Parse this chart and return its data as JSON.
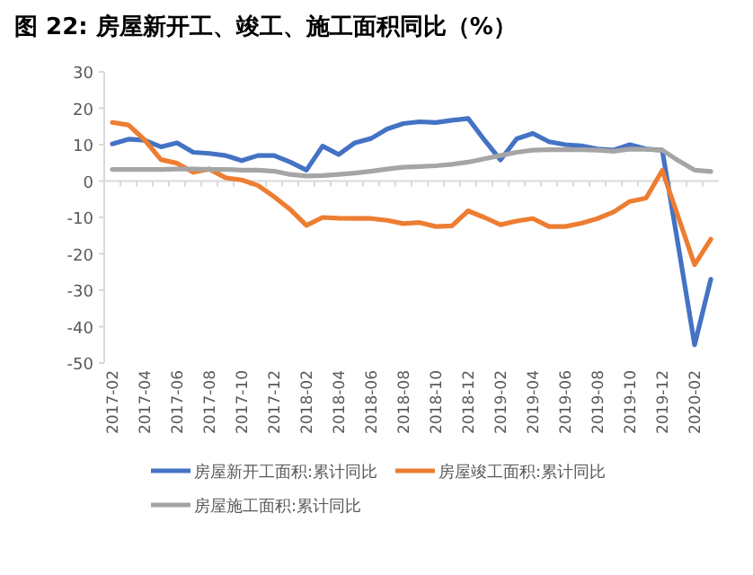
{
  "chart_data": {
    "type": "line",
    "title": "图 22:  房屋新开工、竣工、施工面积同比（%）",
    "categories": [
      "2017-02",
      null,
      "2017-04",
      null,
      "2017-06",
      null,
      "2017-08",
      null,
      "2017-10",
      null,
      "2017-12",
      null,
      "2018-02",
      null,
      "2018-04",
      null,
      "2018-06",
      null,
      "2018-08",
      null,
      "2018-10",
      null,
      "2018-12",
      null,
      "2019-02",
      null,
      "2019-04",
      null,
      "2019-06",
      null,
      "2019-08",
      null,
      "2019-10",
      null,
      "2019-12",
      null,
      "2020-02",
      null
    ],
    "series": [
      {
        "name": "房屋新开工面积:累计同比",
        "color": "#4472c4",
        "values": [
          10.2,
          11.5,
          11.2,
          9.4,
          10.5,
          7.9,
          7.6,
          7.0,
          5.6,
          7.0,
          7.0,
          5.2,
          3.0,
          9.6,
          7.3,
          10.5,
          11.7,
          14.3,
          15.8,
          16.3,
          16.1,
          16.7,
          17.2,
          11.3,
          5.8,
          11.6,
          13.1,
          10.8,
          10.0,
          9.7,
          8.8,
          8.5,
          10.0,
          8.8,
          8.5,
          -18,
          -45,
          -27
        ]
      },
      {
        "name": "房屋竣工面积:累计同比",
        "color": "#ed7d31",
        "values": [
          16.1,
          15.4,
          11.3,
          5.9,
          4.9,
          2.4,
          3.3,
          0.9,
          0.3,
          -1.2,
          -4.3,
          -7.8,
          -12.2,
          -10.0,
          -10.2,
          -10.3,
          -10.3,
          -10.8,
          -11.7,
          -11.4,
          -12.5,
          -12.3,
          -8.2,
          -10.0,
          -12.0,
          -11.0,
          -10.3,
          -12.5,
          -12.5,
          -11.6,
          -10.3,
          -8.5,
          -5.6,
          -4.7,
          2.9,
          -10,
          -23,
          -16
        ]
      },
      {
        "name": "房屋施工面积:累计同比",
        "color": "#a5a5a5",
        "values": [
          3.2,
          3.2,
          3.2,
          3.2,
          3.3,
          3.3,
          3.2,
          3.2,
          3.0,
          3.0,
          2.7,
          1.8,
          1.4,
          1.5,
          1.8,
          2.2,
          2.7,
          3.3,
          3.8,
          4.0,
          4.2,
          4.6,
          5.2,
          6.1,
          7.0,
          7.9,
          8.5,
          8.6,
          8.6,
          8.6,
          8.5,
          8.2,
          8.8,
          8.7,
          8.5,
          5.6,
          3.0,
          2.6
        ]
      }
    ],
    "ylim": [
      -50,
      30
    ],
    "yticks": [
      -50,
      -40,
      -30,
      -20,
      -10,
      0,
      10,
      20,
      30
    ],
    "legend": "bottom"
  }
}
